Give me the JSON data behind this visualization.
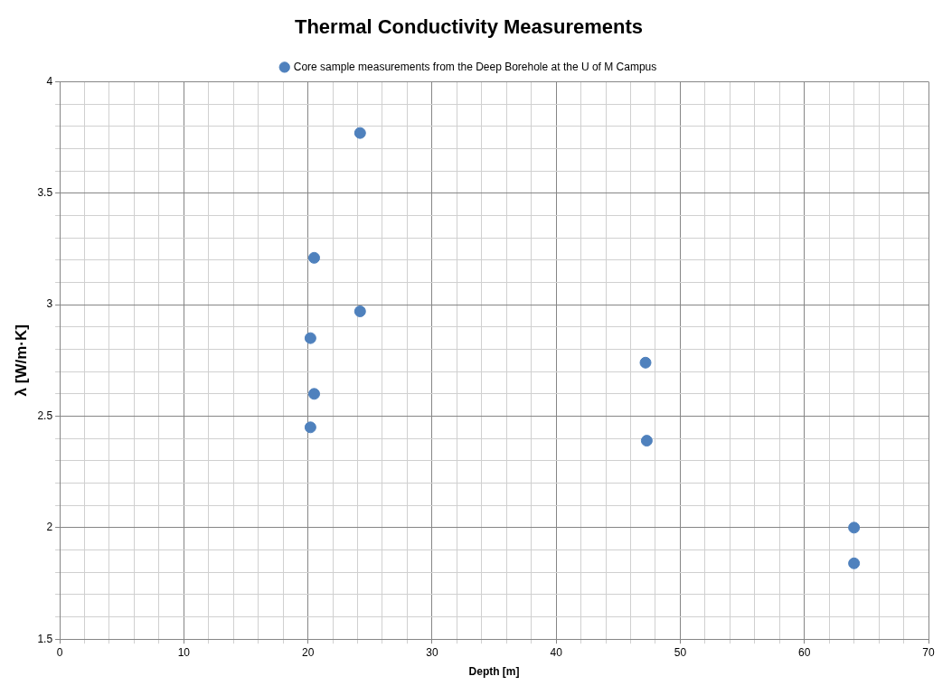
{
  "chart_data": {
    "type": "scatter",
    "title": "Thermal Conductivity Measurements",
    "xlabel": "Depth [m]",
    "ylabel": "λ [W/m·K]",
    "series": [
      {
        "name": "Core sample measurements from the Deep Borehole at the U of M Campus",
        "color": "#4f81bd",
        "x": [
          24.2,
          20.5,
          24.2,
          20.2,
          20.5,
          20.2,
          47.2,
          47.3,
          64.0,
          64.0
        ],
        "values": [
          3.77,
          3.21,
          2.97,
          2.85,
          2.6,
          2.45,
          2.74,
          2.39,
          2.0,
          1.84
        ]
      }
    ],
    "xlim": [
      0,
      70
    ],
    "ylim": [
      1.5,
      4
    ],
    "xticks": [
      0,
      {
        "value": 2,
        "label": null
      },
      {
        "value": 4,
        "label": null
      },
      {
        "value": 6,
        "label": null
      },
      {
        "value": 8,
        "label": null
      },
      10,
      {
        "value": 12,
        "label": null
      },
      {
        "value": 14,
        "label": null
      },
      {
        "value": 16,
        "label": null
      },
      {
        "value": 18,
        "label": null
      },
      20,
      {
        "value": 22,
        "label": null
      },
      {
        "value": 24,
        "label": null
      },
      {
        "value": 26,
        "label": null
      },
      {
        "value": 28,
        "label": null
      },
      30,
      {
        "value": 32,
        "label": null
      },
      {
        "value": 34,
        "label": null
      },
      {
        "value": 36,
        "label": null
      },
      {
        "value": 38,
        "label": null
      },
      40,
      {
        "value": 42,
        "label": null
      },
      {
        "value": 44,
        "label": null
      },
      {
        "value": 46,
        "label": null
      },
      {
        "value": 48,
        "label": null
      },
      50,
      {
        "value": 52,
        "label": null
      },
      {
        "value": 54,
        "label": null
      },
      {
        "value": 56,
        "label": null
      },
      {
        "value": 58,
        "label": null
      },
      60,
      {
        "value": 62,
        "label": null
      },
      {
        "value": 64,
        "label": null
      },
      {
        "value": 66,
        "label": null
      },
      {
        "value": 68,
        "label": null
      },
      70
    ],
    "yticks": [
      1.5,
      {
        "value": 1.6,
        "label": null
      },
      {
        "value": 1.7,
        "label": null
      },
      {
        "value": 1.8,
        "label": null
      },
      {
        "value": 1.9,
        "label": null
      },
      2,
      {
        "value": 2.1,
        "label": null
      },
      {
        "value": 2.2,
        "label": null
      },
      {
        "value": 2.3,
        "label": null
      },
      {
        "value": 2.4,
        "label": null
      },
      2.5,
      {
        "value": 2.6,
        "label": null
      },
      {
        "value": 2.7,
        "label": null
      },
      {
        "value": 2.8,
        "label": null
      },
      {
        "value": 2.9,
        "label": null
      },
      3,
      {
        "value": 3.1,
        "label": null
      },
      {
        "value": 3.2,
        "label": null
      },
      {
        "value": 3.3,
        "label": null
      },
      {
        "value": 3.4,
        "label": null
      },
      3.5,
      {
        "value": 3.6,
        "label": null
      },
      {
        "value": 3.7,
        "label": null
      },
      {
        "value": 3.8,
        "label": null
      },
      {
        "value": 3.9,
        "label": null
      },
      4
    ],
    "grid": true,
    "legend": "top",
    "marker": "circle"
  }
}
